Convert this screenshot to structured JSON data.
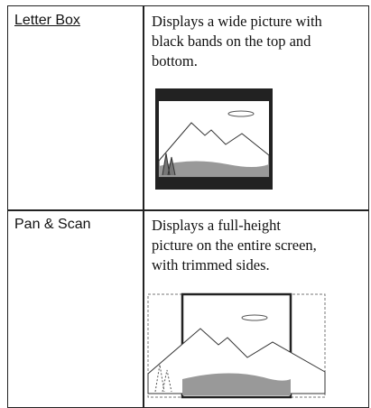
{
  "table": {
    "rows": [
      {
        "label": "Letter Box",
        "description": [
          "Displays a wide picture with",
          "black bands on the top and",
          "bottom."
        ]
      },
      {
        "label": "Pan & Scan",
        "description": [
          "Displays a full-height",
          "picture on the entire screen,",
          "with trimmed sides."
        ]
      }
    ]
  }
}
